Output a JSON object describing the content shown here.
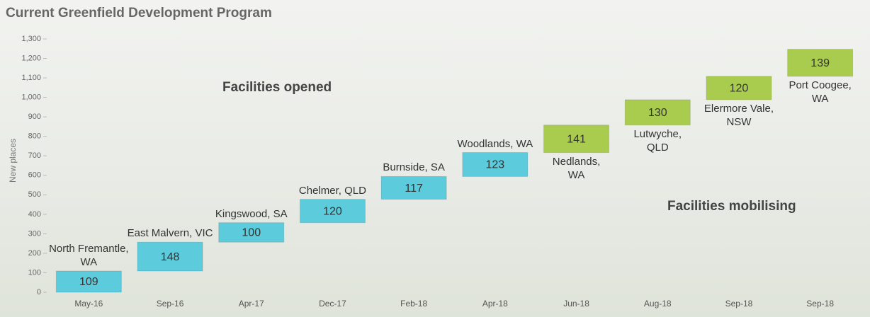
{
  "chart_data": {
    "type": "waterfall",
    "title": "Current Greenfield Development Program",
    "y_label": "New places",
    "categories": [
      "May-16",
      "Sep-16",
      "Apr-17",
      "Dec-17",
      "Feb-18",
      "Apr-18",
      "Jun-18",
      "Aug-18",
      "Sep-18",
      "Sep-18"
    ],
    "labels": [
      "North Fremantle,\nWA",
      "East Malvern, VIC",
      "Kingswood, SA",
      "Chelmer, QLD",
      "Burnside, SA",
      "Woodlands, WA",
      "Nedlands,\nWA",
      "Lutwyche,\nQLD",
      "Elermore Vale,\nNSW",
      "Port Coogee,\nWA"
    ],
    "values": [
      109,
      148,
      100,
      120,
      117,
      123,
      141,
      130,
      120,
      139
    ],
    "colors": [
      "#5ccbdc",
      "#5ccbdc",
      "#5ccbdc",
      "#5ccbdc",
      "#5ccbdc",
      "#5ccbdc",
      "#a9cc4f",
      "#a9cc4f",
      "#a9cc4f",
      "#a9cc4f"
    ],
    "annotations": [
      "Facilities opened",
      "Facilities mobilising"
    ],
    "ylim": [
      0,
      1300
    ],
    "yticks": [
      0,
      100,
      200,
      300,
      400,
      500,
      600,
      700,
      800,
      900,
      {
        "value": 1000,
        "label": "1,000"
      },
      {
        "value": 1100,
        "label": "1,100"
      },
      {
        "value": 1200,
        "label": "1,200"
      },
      {
        "value": 1300,
        "label": "1,300"
      }
    ]
  }
}
